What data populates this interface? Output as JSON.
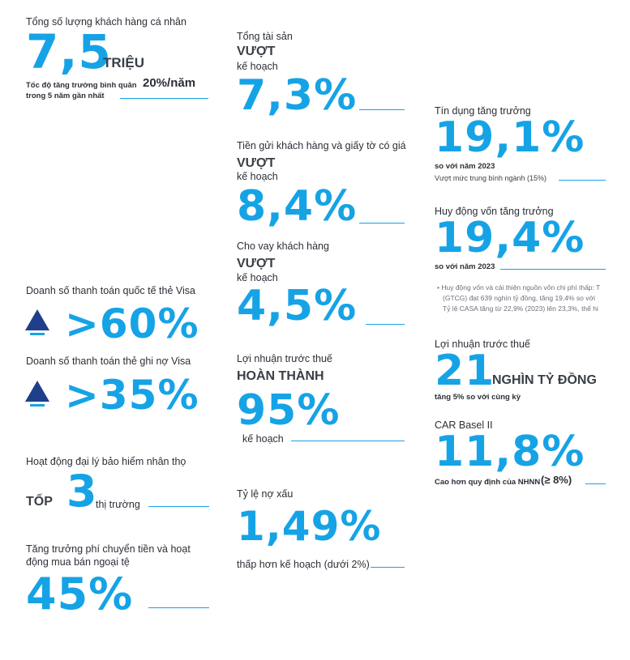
{
  "accent": "#16a3e6",
  "col1": {
    "customers": {
      "label": "Tổng số lượng khách hàng cá nhân",
      "value": "7,5",
      "unit": "TRIỆU",
      "growth_prefix": "Tốc độ tăng trưởng bình quân",
      "growth_value": "20%/năm",
      "growth_suffix": "trong 5 năm gần nhất"
    },
    "visa_intl": {
      "label": "Doanh số thanh toán quốc tế thẻ Visa",
      "value": ">60%",
      "icon": "up-arrow-icon"
    },
    "visa_debit": {
      "label": "Doanh số thanh toán thẻ ghi nợ Visa",
      "value": ">35%",
      "icon": "up-arrow-icon"
    },
    "insurance": {
      "label": "Hoạt động đại lý bảo hiểm nhân thọ",
      "prefix": "TỐP",
      "value": "3",
      "suffix": "thị trường"
    },
    "fees": {
      "label_line1": "Tăng trưởng phí chuyển tiền và hoạt",
      "label_line2": "động mua bán ngoại tệ",
      "value": "45%"
    }
  },
  "col2": {
    "assets": {
      "label": "Tổng tài sản",
      "status": "VƯỢT",
      "sub": "kế hoạch",
      "value": "7,3%"
    },
    "deposits": {
      "label": "Tiền gửi khách hàng và giấy tờ có giá",
      "status": "VƯỢT",
      "sub": "kế hoạch",
      "value": "8,4%"
    },
    "loans": {
      "label": "Cho vay khách hàng",
      "status": "VƯỢT",
      "sub": "kế hoạch",
      "value": "4,5%"
    },
    "profit_plan": {
      "label": "Lợi nhuận trước thuế",
      "status": "HOÀN THÀNH",
      "value": "95%",
      "sub": "kế hoạch"
    },
    "npl": {
      "label": "Tỷ lệ nợ xấu",
      "value": "1,49%",
      "sub": "thấp hơn kế hoạch (dưới 2%)"
    }
  },
  "col3": {
    "credit": {
      "label": "Tín dụng tăng trưởng",
      "value": "19,1%",
      "sub": "so với năm 2023",
      "note": "Vượt mức trung bình ngành (15%)"
    },
    "funding": {
      "label": "Huy động vốn tăng trưởng",
      "value": "19,4%",
      "sub": "so với năm 2023",
      "bullet_line1": "• Huy động vốn và cải thiện nguồn vốn chi phí thấp: T",
      "bullet_line2": "(GTCG) đạt 639 nghìn tỷ đồng, tăng 19,4% so với",
      "bullet_line3": "Tỷ lệ CASA tăng từ 22,9% (2023) lên 23,3%, thể hi"
    },
    "profit": {
      "label": "Lợi nhuận trước thuế",
      "value": "21",
      "unit": "NGHÌN TỶ ĐỒNG",
      "sub": "tăng 5% so với cùng kỳ"
    },
    "car": {
      "label": "CAR Basel II",
      "value": "11,8%",
      "sub_prefix": "Cao hơn quy định của NHNN",
      "sub_value": "(≥ 8%)"
    }
  }
}
